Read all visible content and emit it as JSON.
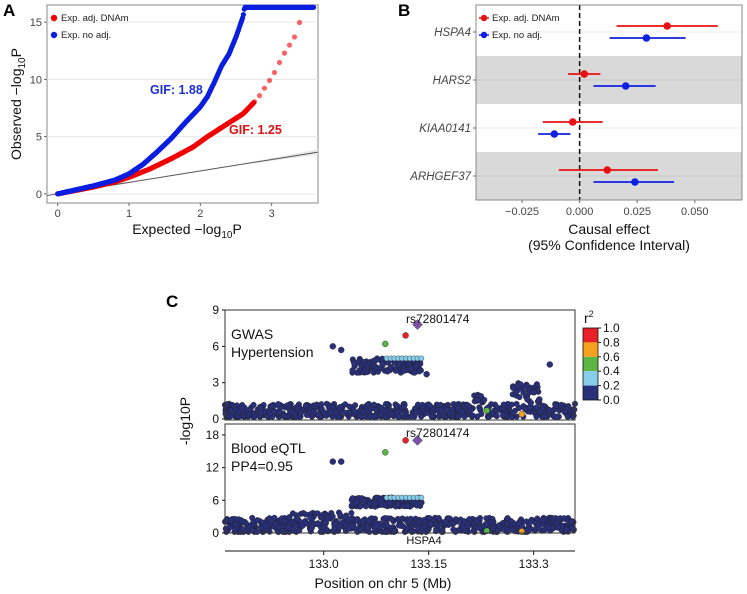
{
  "chart_data": [
    {
      "panel": "A",
      "type": "scatter",
      "title": "",
      "xlabel": "Expected −log10P",
      "ylabel": "Observed −log10P",
      "xlabel_parts": [
        "Expected −log",
        "10",
        "P"
      ],
      "ylabel_parts": [
        "Observed −log",
        "10",
        "P"
      ],
      "xlim": [
        -0.15,
        3.65
      ],
      "ylim": [
        -0.8,
        16.5
      ],
      "xticks": [
        "0",
        "1",
        "2",
        "3"
      ],
      "yticks": [
        "0",
        "5",
        "10",
        "15"
      ],
      "grid": true,
      "legend_position": "top-left",
      "series": [
        {
          "name": "Exp. adj. DNAm",
          "color": "#f00000",
          "points": [
            [
              0,
              0
            ],
            [
              0.5,
              0.6
            ],
            [
              0.8,
              1.05
            ],
            [
              1,
              1.45
            ],
            [
              1.3,
              2.2
            ],
            [
              1.6,
              3.1
            ],
            [
              1.9,
              4.1
            ],
            [
              2.1,
              5.0
            ],
            [
              2.4,
              6.2
            ],
            [
              2.6,
              7.0
            ],
            [
              2.8,
              8.3
            ],
            [
              2.95,
              9.7
            ],
            [
              3.05,
              10.7
            ],
            [
              3.15,
              12.0
            ],
            [
              3.25,
              13.0
            ],
            [
              3.35,
              14.0
            ],
            [
              3.42,
              15.7
            ]
          ]
        },
        {
          "name": "Exp. no adj.",
          "color": "#0a1ee0",
          "points": [
            [
              0,
              0
            ],
            [
              0.5,
              0.7
            ],
            [
              0.8,
              1.2
            ],
            [
              1,
              1.75
            ],
            [
              1.2,
              2.6
            ],
            [
              1.4,
              3.7
            ],
            [
              1.6,
              4.9
            ],
            [
              1.8,
              6.3
            ],
            [
              2.0,
              7.6
            ],
            [
              2.1,
              8.5
            ],
            [
              2.2,
              9.8
            ],
            [
              2.3,
              11.2
            ],
            [
              2.4,
              12.2
            ],
            [
              2.5,
              13.7
            ],
            [
              2.6,
              15.5
            ],
            [
              2.62,
              16.3
            ],
            [
              3.6,
              16.3
            ]
          ]
        }
      ],
      "reference_line": {
        "slope": 1,
        "intercept": 0,
        "color": "#555555"
      },
      "annotations": [
        {
          "text": "GIF: 1.88",
          "color": "#1a2fd6",
          "x": 1.3,
          "y": 10
        },
        {
          "text": "GIF: 1.25",
          "color": "#e01010",
          "x": 2.4,
          "y": 5.5
        }
      ]
    },
    {
      "panel": "B",
      "type": "scatter",
      "subtype": "forest",
      "xlabel": "Causal effect",
      "xlabel2": "(95% Confidence Interval)",
      "xlim": [
        -0.045,
        0.0705
      ],
      "xticks": [
        -0.025,
        0.0,
        0.025,
        0.05
      ],
      "xtick_labels": [
        "−0.025",
        "0.000",
        "0.025",
        "0.050"
      ],
      "reference_x": 0,
      "legend_position": "top-left",
      "categories": [
        "HSPA4",
        "HARS2",
        "KIAA0141",
        "ARHGEF37"
      ],
      "series": [
        {
          "name": "Exp. adj. DNAm",
          "color": "#e81010",
          "estimate": [
            0.038,
            0.002,
            -0.003,
            0.012
          ],
          "lower": [
            0.016,
            -0.005,
            -0.016,
            -0.009
          ],
          "upper": [
            0.06,
            0.009,
            0.01,
            0.034
          ]
        },
        {
          "name": "Exp. no adj.",
          "color": "#1020e0",
          "estimate": [
            0.029,
            0.02,
            -0.011,
            0.024
          ],
          "lower": [
            0.013,
            0.006,
            -0.018,
            0.006
          ],
          "upper": [
            0.046,
            0.033,
            -0.004,
            0.041
          ]
        }
      ]
    },
    {
      "panel": "C",
      "type": "scatter",
      "subtype": "locuszoom",
      "xlabel": "Position on chr 5 (Mb)",
      "ylabel": "-log10P",
      "ylabel_parts": [
        "-log",
        "10",
        "P"
      ],
      "xlim": [
        132.859,
        133.359
      ],
      "xticks": [
        133.0,
        133.15,
        133.3
      ],
      "xtick_labels": [
        "133.0",
        "133.15",
        "133.3"
      ],
      "gene": {
        "name": "HSPA4"
      },
      "colorbar": {
        "title": "r",
        "title_sup": "2",
        "labels": [
          "1.0",
          "0.8",
          "0.6",
          "0.4",
          "0.2",
          "0.0"
        ],
        "colors": [
          "#e8202a",
          "#f5a01e",
          "#5cb543",
          "#87ceeb",
          "#28307a"
        ]
      },
      "lead_snp": "rs72801474",
      "tracks": [
        {
          "title": "GWAS",
          "title2": "Hypertension",
          "ylim": [
            0,
            9
          ],
          "yticks": [
            "0",
            "3",
            "6",
            "9"
          ],
          "lead_label": "rs72801474",
          "highlights": [
            {
              "x": 133.134,
              "y": 7.8,
              "r2": "lead"
            },
            {
              "x": 133.117,
              "y": 6.9,
              "r2": 1.0
            },
            {
              "x": 133.088,
              "y": 6.2,
              "r2": 0.5
            },
            {
              "x": 133.013,
              "y": 6.0,
              "r2": 0.1
            },
            {
              "x": 133.025,
              "y": 5.7,
              "r2": 0.1
            },
            {
              "x": 133.323,
              "y": 4.5,
              "r2": 0.1
            },
            {
              "x": 133.147,
              "y": 3.7,
              "r2": 0.1
            },
            {
              "x": 133.233,
              "y": 0.7,
              "r2": 0.5
            },
            {
              "x": 133.283,
              "y": 0.4,
              "r2": 0.7
            }
          ],
          "band_level": 5.0
        },
        {
          "title": "Blood eQTL",
          "title2": "PP4=0.95",
          "ylim": [
            0,
            20
          ],
          "yticks": [
            "0",
            "6",
            "12",
            "18"
          ],
          "lead_label": "rs72801474",
          "highlights": [
            {
              "x": 133.134,
              "y": 17.0,
              "r2": "lead"
            },
            {
              "x": 133.117,
              "y": 17.0,
              "r2": 1.0
            },
            {
              "x": 133.088,
              "y": 14.8,
              "r2": 0.5
            },
            {
              "x": 133.013,
              "y": 13.1,
              "r2": 0.1
            },
            {
              "x": 133.025,
              "y": 13.1,
              "r2": 0.1
            },
            {
              "x": 133.233,
              "y": 0.4,
              "r2": 0.5
            },
            {
              "x": 133.283,
              "y": 0.3,
              "r2": 0.7
            }
          ],
          "band_level": 6.5
        }
      ]
    }
  ],
  "panels": {
    "a": "A",
    "b": "B",
    "c": "C"
  }
}
